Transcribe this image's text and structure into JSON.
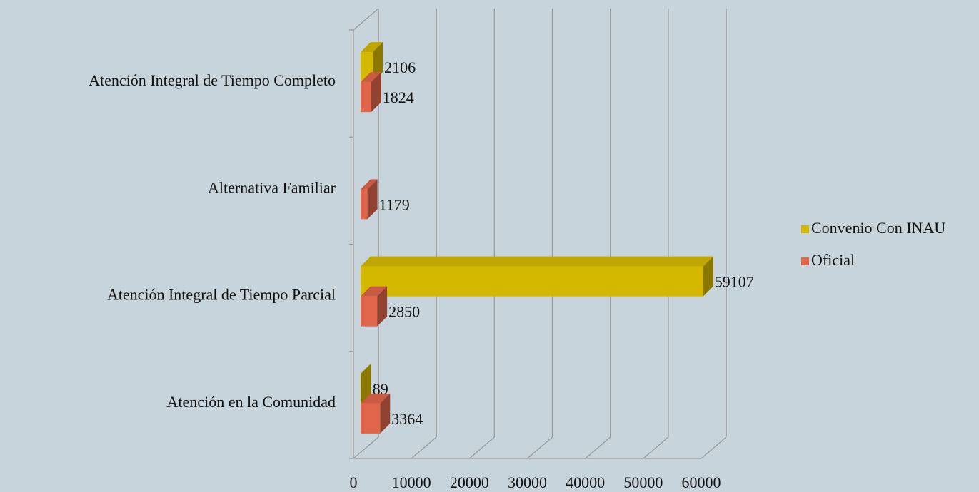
{
  "chart_data": {
    "type": "bar",
    "orientation": "horizontal",
    "three_d": true,
    "categories": [
      "Atención Integral de Tiempo Completo",
      "Alternativa Familiar",
      "Atención Integral de Tiempo Parcial",
      "Atención en la Comunidad"
    ],
    "series": [
      {
        "name": "Convenio Con INAU",
        "color": "#d4b800",
        "values": [
          2106,
          null,
          59107,
          89
        ]
      },
      {
        "name": "Oficial",
        "color": "#e0654a",
        "values": [
          1824,
          1179,
          2850,
          3364
        ]
      }
    ],
    "xlim": [
      0,
      60000
    ],
    "xticks": [
      0,
      10000,
      20000,
      30000,
      40000,
      50000,
      60000
    ],
    "grid": true,
    "legend": "right"
  }
}
